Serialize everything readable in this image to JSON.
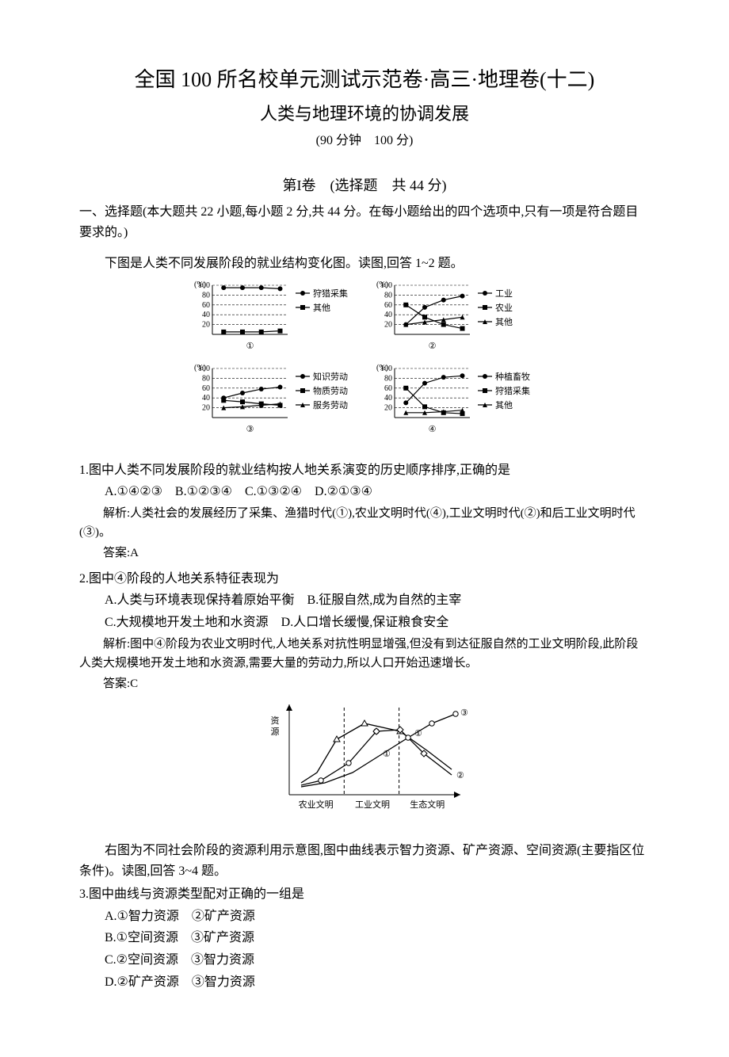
{
  "header": {
    "title1": "全国 100 所名校单元测试示范卷·高三·地理卷(十二)",
    "title2": "人类与地理环境的协调发展",
    "title3": "(90 分钟　100 分)"
  },
  "section1": {
    "heading": "第I卷　(选择题　共 44 分)",
    "instructions": "一、选择题(本大题共 22 小题,每小题 2 分,共 44 分。在每小题给出的四个选项中,只有一项是符合题目要求的。)"
  },
  "fig1_intro": "下图是人类不同发展阶段的就业结构变化图。读图,回答 1~2 题。",
  "fig1": {
    "panels": [
      {
        "num": "①",
        "series": [
          {
            "label": "狩猎采集",
            "marker": "circle",
            "y": [
              95,
              95,
              95,
              93
            ]
          },
          {
            "label": "其他",
            "marker": "square",
            "y": [
              5,
              5,
              5,
              7
            ]
          }
        ]
      },
      {
        "num": "②",
        "series": [
          {
            "label": "工业",
            "marker": "circle",
            "y": [
              20,
              55,
              70,
              78
            ]
          },
          {
            "label": "农业",
            "marker": "square",
            "y": [
              60,
              35,
              20,
              12
            ]
          },
          {
            "label": "其他",
            "marker": "triangle",
            "y": [
              20,
              25,
              30,
              35
            ]
          }
        ]
      },
      {
        "num": "③",
        "series": [
          {
            "label": "知识劳动",
            "marker": "circle",
            "y": [
              40,
              50,
              58,
              62
            ]
          },
          {
            "label": "物质劳动",
            "marker": "square",
            "y": [
              35,
              32,
              28,
              25
            ]
          },
          {
            "label": "服务劳动",
            "marker": "triangle",
            "y": [
              20,
              22,
              25,
              28
            ]
          }
        ]
      },
      {
        "num": "④",
        "series": [
          {
            "label": "种植畜牧",
            "marker": "circle",
            "y": [
              30,
              70,
              82,
              85
            ]
          },
          {
            "label": "狩猎采集",
            "marker": "square",
            "y": [
              60,
              22,
              10,
              8
            ]
          },
          {
            "label": "其他",
            "marker": "triangle",
            "y": [
              10,
              10,
              12,
              15
            ]
          }
        ]
      }
    ],
    "ylabel": "(%)",
    "yticks": [
      20,
      40,
      60,
      80,
      100
    ]
  },
  "q1": {
    "stem": "1.图中人类不同发展阶段的就业结构按人地关系演变的历史顺序排序,正确的是",
    "options": "A.①④②③　B.①②③④　C.①③②④　D.②①③④",
    "explain": "解析:人类社会的发展经历了采集、渔猎时代(①),农业文明时代(④),工业文明时代(②)和后工业文明时代(③)。",
    "answer": "答案:A"
  },
  "q2": {
    "stem": "2.图中④阶段的人地关系特征表现为",
    "optA": "A.人类与环境表现保持着原始平衡　B.征服自然,成为自然的主宰",
    "optB": "C.大规模地开发土地和水资源　D.人口增长缓慢,保证粮食安全",
    "explain": "解析:图中④阶段为农业文明时代,人地关系对抗性明显增强,但没有到达征服自然的工业文明阶段,此阶段人类大规模地开发土地和水资源,需要大量的劳动力,所以人口开始迅速增长。",
    "answer": "答案:C"
  },
  "fig2": {
    "ylabel": "资源",
    "xlabels": [
      "农业文明",
      "工业文明",
      "生态文明"
    ],
    "curves": {
      "c1": {
        "label": "①",
        "pts": [
          [
            15,
            95
          ],
          [
            35,
            82
          ],
          [
            60,
            40
          ],
          [
            95,
            20
          ],
          [
            140,
            30
          ],
          [
            175,
            55
          ],
          [
            205,
            78
          ]
        ]
      },
      "c2": {
        "label": "②",
        "pts": [
          [
            15,
            98
          ],
          [
            40,
            92
          ],
          [
            75,
            70
          ],
          [
            110,
            30
          ],
          [
            140,
            28
          ],
          [
            170,
            58
          ],
          [
            205,
            85
          ]
        ]
      },
      "c3": {
        "label": "③",
        "pts": [
          [
            15,
            100
          ],
          [
            45,
            95
          ],
          [
            80,
            82
          ],
          [
            115,
            60
          ],
          [
            150,
            38
          ],
          [
            180,
            20
          ],
          [
            210,
            8
          ]
        ]
      }
    },
    "markers": {
      "tri": [
        [
          60,
          40
        ],
        [
          95,
          20
        ],
        [
          140,
          30
        ]
      ],
      "circ": [
        [
          40,
          92
        ],
        [
          75,
          70
        ],
        [
          110,
          30
        ],
        [
          150,
          38
        ],
        [
          180,
          20
        ],
        [
          210,
          8
        ]
      ],
      "diam": [
        [
          110,
          30
        ],
        [
          140,
          28
        ],
        [
          170,
          58
        ]
      ]
    }
  },
  "fig2_intro": "右图为不同社会阶段的资源利用示意图,图中曲线表示智力资源、矿产资源、空间资源(主要指区位条件)。读图,回答 3~4 题。",
  "q3": {
    "stem": "3.图中曲线与资源类型配对正确的一组是",
    "a": "A.①智力资源　②矿产资源",
    "b": "B.①空间资源　③矿产资源",
    "c": "C.②空间资源　③智力资源",
    "d": "D.②矿产资源　③智力资源"
  }
}
